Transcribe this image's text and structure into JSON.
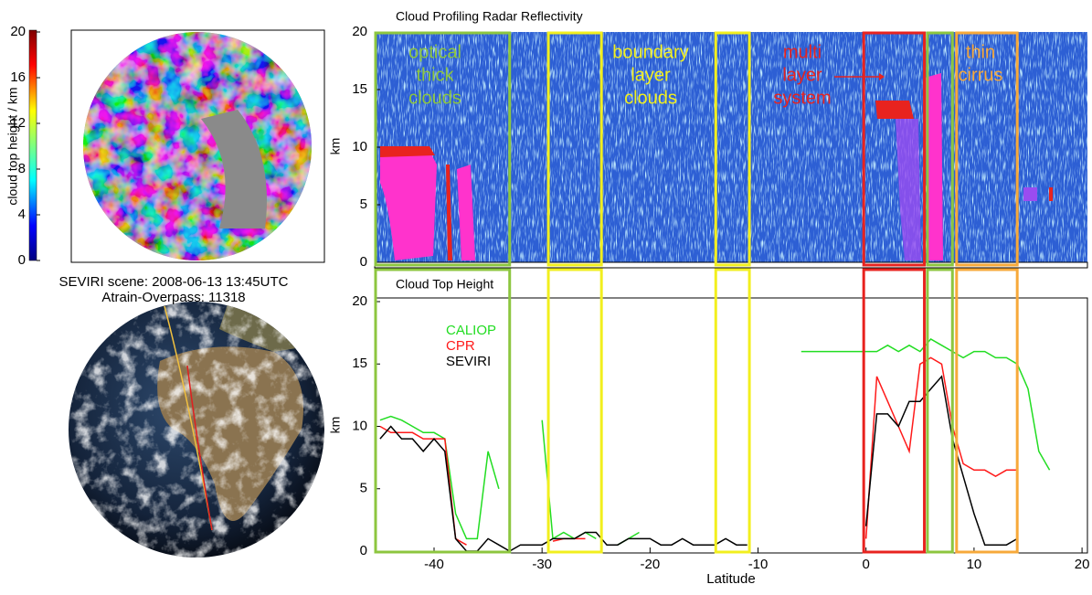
{
  "chart_data": [
    {
      "type": "colorbar",
      "ylabel": "cloud top height / km",
      "ylim": [
        0,
        20
      ],
      "yticks": [
        0,
        4,
        8,
        12,
        16,
        20
      ]
    },
    {
      "type": "radar",
      "title": "Cloud Profiling Radar Reflectivity",
      "ylabel": "km",
      "xlim": [
        -45.5,
        20.5
      ],
      "ylim": [
        0,
        20
      ],
      "yticks": [
        0,
        5,
        10,
        15,
        20
      ],
      "annotations": [
        {
          "lines": [
            "optical",
            "thick",
            "clouds"
          ],
          "color": "#8dc63f"
        },
        {
          "lines": [
            "boundary",
            "layer",
            "clouds"
          ],
          "color": "#f2ef1e"
        },
        {
          "lines": [
            "multi",
            "layer",
            "system"
          ],
          "color": "#e8231f"
        },
        {
          "lines": [
            "thin",
            "cirrus"
          ],
          "color": "#f7a93a"
        }
      ]
    },
    {
      "type": "line",
      "title": "Cloud Top Height",
      "xlabel": "Latitude",
      "ylabel": "km",
      "xlim": [
        -45.5,
        20.5
      ],
      "xticks": [
        -40,
        -30,
        -20,
        -10,
        0,
        10,
        20
      ],
      "ylim": [
        0,
        20
      ],
      "yticks": [
        0,
        5,
        10,
        15,
        20
      ],
      "legend": "upper left",
      "x": [
        -45,
        -44,
        -43,
        -42,
        -41,
        -40,
        -39,
        -38,
        -37,
        -36,
        -35,
        -34,
        -33,
        -32,
        -31,
        -30,
        -29,
        -28,
        -27,
        -26,
        -25,
        -24,
        -23,
        -22,
        -21,
        -20,
        -19,
        -18,
        -17,
        -16,
        -15,
        -14,
        -13,
        -12,
        -11,
        -10,
        -9,
        -8,
        -7,
        -6,
        -5,
        -4,
        -3,
        -2,
        -1,
        0,
        1,
        2,
        3,
        4,
        5,
        6,
        7,
        8,
        9,
        10,
        11,
        12,
        13,
        14,
        15,
        16,
        17
      ],
      "series": [
        {
          "name": "CALIOP",
          "color": "#22dd22",
          "values": [
            10.5,
            10.8,
            10.5,
            10,
            9.5,
            9.5,
            9,
            3,
            1,
            1,
            8,
            5,
            null,
            null,
            null,
            10.5,
            1,
            1.5,
            1,
            1.5,
            1,
            null,
            0.5,
            1,
            1.5,
            null,
            null,
            null,
            null,
            null,
            null,
            null,
            null,
            null,
            null,
            null,
            null,
            null,
            null,
            16,
            16,
            16,
            16,
            16,
            16,
            16,
            16,
            16.5,
            16,
            16.5,
            16,
            17,
            16.5,
            16,
            15.5,
            16,
            16,
            15.5,
            15.5,
            15,
            13,
            8,
            6.5
          ]
        },
        {
          "name": "CPR",
          "color": "#ff1a1a",
          "values": [
            10,
            9.5,
            9.5,
            9.5,
            9,
            9,
            9,
            1,
            0.5,
            null,
            8,
            null,
            null,
            null,
            null,
            null,
            0.8,
            1,
            1,
            1,
            null,
            null,
            null,
            null,
            null,
            null,
            null,
            null,
            null,
            null,
            null,
            null,
            null,
            null,
            null,
            null,
            null,
            null,
            null,
            null,
            null,
            null,
            null,
            null,
            null,
            1,
            14,
            12,
            10,
            8,
            15,
            15.5,
            15,
            10,
            7,
            6.5,
            6.5,
            6,
            6.5,
            6.5,
            null,
            null,
            null
          ]
        },
        {
          "name": "SEVIRI",
          "color": "#000000",
          "values": [
            9,
            10,
            9,
            9,
            8,
            9,
            8,
            1,
            0,
            0,
            1,
            0.5,
            0,
            0.5,
            0.5,
            0.5,
            1,
            1,
            1,
            1.5,
            1.5,
            0.5,
            0.5,
            1,
            1,
            1,
            0.5,
            0.5,
            1,
            0.5,
            0.5,
            0.5,
            1,
            0.5,
            0.5,
            null,
            0.5,
            null,
            null,
            null,
            null,
            null,
            null,
            null,
            null,
            2,
            11,
            11,
            10,
            12,
            12,
            13,
            14,
            9,
            6,
            3,
            0.5,
            0.5,
            0.5,
            1,
            null,
            null,
            null
          ]
        }
      ]
    }
  ],
  "regions": [
    {
      "color": "#8dc63f",
      "x": [
        -45.5,
        -33
      ]
    },
    {
      "color": "#f2ef1e",
      "x": [
        -29.5,
        -24.5
      ]
    },
    {
      "color": "#f2ef1e",
      "x": [
        -14,
        -10.8
      ]
    },
    {
      "color": "#e8231f",
      "x": [
        -0.3,
        5.4
      ]
    },
    {
      "color": "#8dc63f",
      "x": [
        5.6,
        8
      ]
    },
    {
      "color": "#f7a93a",
      "x": [
        8.3,
        14
      ]
    }
  ],
  "caption": [
    "SEVIRI scene: 2008-06-13 13:45UTC",
    "Atrain-Overpass: 11318"
  ]
}
